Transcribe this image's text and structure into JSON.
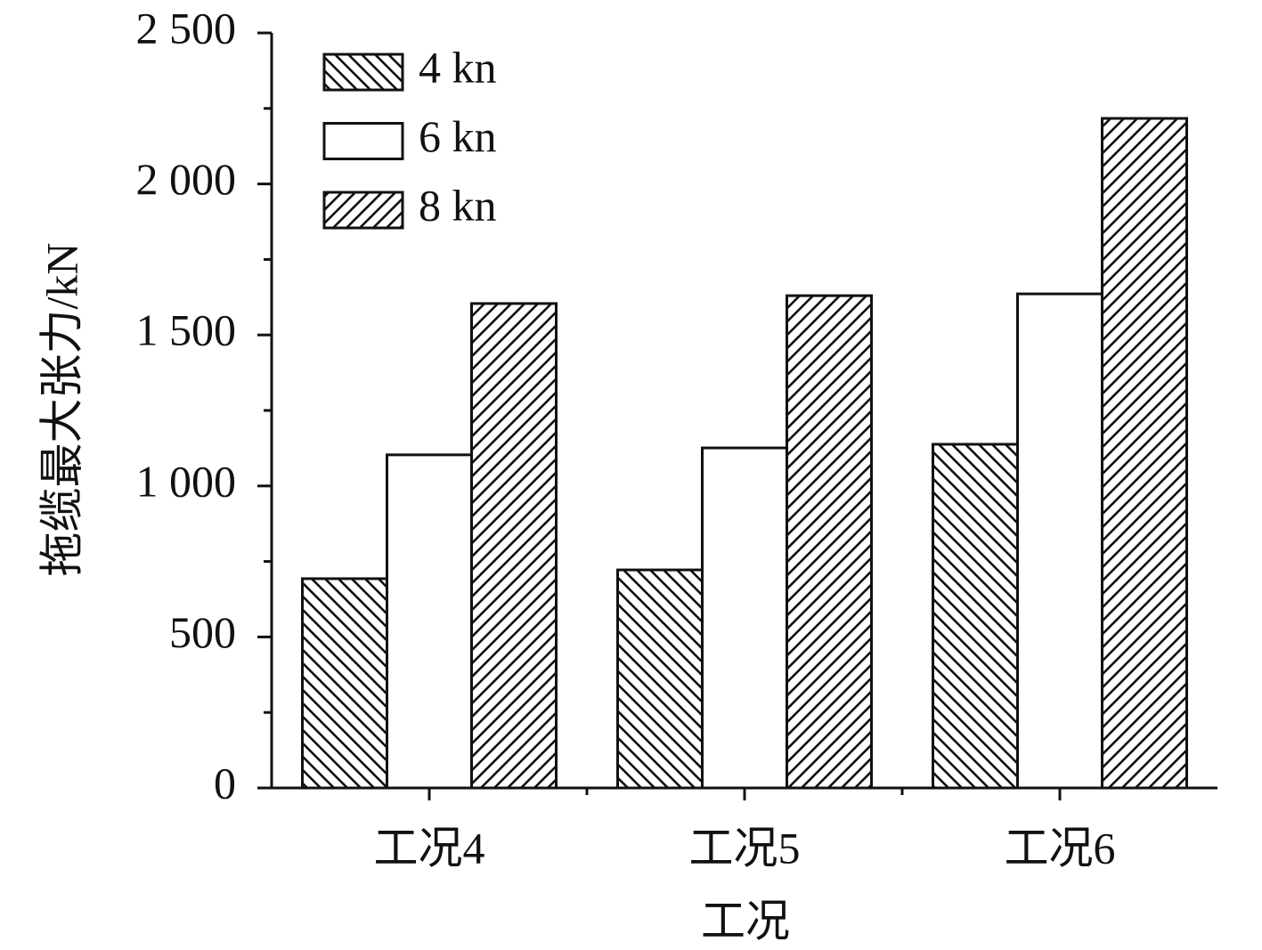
{
  "chart_data": {
    "type": "bar",
    "y_label": "拖缆最大张力/kN",
    "x_label": "工况",
    "categories": [
      "工况4",
      "工况5",
      "工况6"
    ],
    "series": [
      {
        "name": "4 kn",
        "color": "#ffffff",
        "hatch": "backslash",
        "values": [
          693,
          722,
          1138
        ]
      },
      {
        "name": "6 kn",
        "color": "#ffffff",
        "hatch": "none",
        "values": [
          1103,
          1126,
          1636
        ]
      },
      {
        "name": "8 kn",
        "color": "#ffffff",
        "hatch": "slash",
        "values": [
          1604,
          1630,
          2217
        ]
      }
    ],
    "ylim": [
      0,
      2500
    ],
    "yticks": [
      0,
      500,
      {
        "value": 1000,
        "label": "1 000"
      },
      {
        "value": 1500,
        "label": "1 500"
      },
      {
        "value": 2000,
        "label": "2 000"
      },
      {
        "value": 2500,
        "label": "2 500"
      }
    ],
    "yminorticks": [
      250,
      750,
      1250,
      1750,
      2250
    ],
    "legend": "upper left",
    "grid": false
  }
}
